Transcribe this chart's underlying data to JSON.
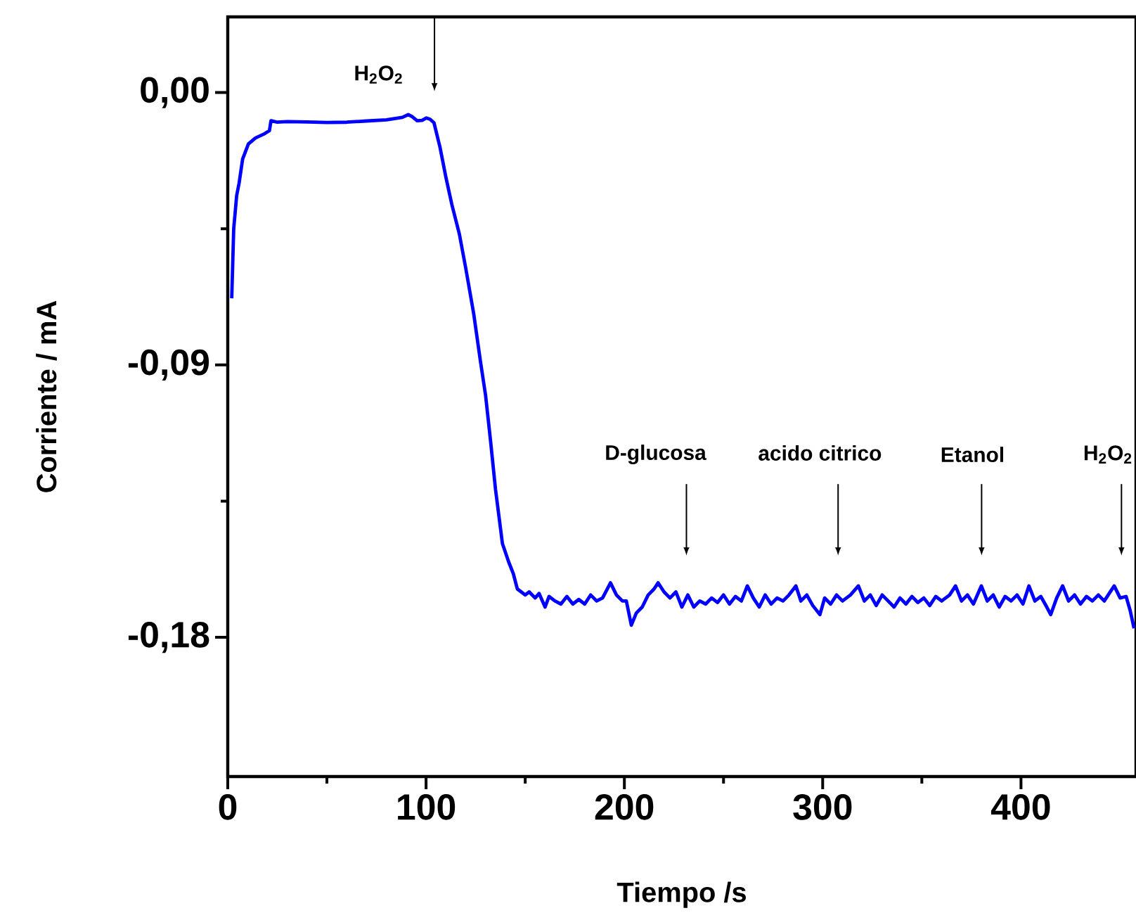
{
  "chart_data": {
    "type": "line",
    "xlabel": "Tiempo /s",
    "ylabel": "Corriente / mA",
    "xlim": [
      0,
      458
    ],
    "ylim": [
      -0.226,
      0.025
    ],
    "xticks": [
      0,
      100,
      200,
      300,
      400
    ],
    "yticks": [
      {
        "value": 0,
        "label": "0,00"
      },
      {
        "value": -0.09,
        "label": "-0,09"
      },
      {
        "value": -0.18,
        "label": "-0,18"
      }
    ],
    "grid": false,
    "marker": "none",
    "line_style": "solid",
    "annotations": [
      "H$_{2}$O$_{2}$",
      "D-glucosa",
      "acido citrico",
      "Etanol",
      "H$_{2}$O$_{2}$"
    ],
    "series": [
      {
        "color": "#0000ff",
        "x": [
          2,
          3,
          4.5,
          5.7,
          7.5,
          10.4,
          14,
          18,
          21,
          21.8,
          25,
          30,
          40,
          50,
          60,
          70,
          80,
          88,
          91,
          93,
          95.5,
          98,
          100.2,
          102,
          104,
          107,
          110,
          113,
          116.8,
          120,
          124,
          127.4,
          130,
          132.5,
          135,
          138.5,
          141.6,
          144,
          146,
          148,
          150,
          152,
          155,
          157,
          160,
          162,
          165,
          168,
          171,
          174,
          177,
          180,
          183,
          186,
          189,
          193,
          196,
          199,
          201,
          203.5,
          206,
          209,
          212,
          215,
          217,
          220,
          223,
          226,
          229,
          232,
          235,
          238,
          241,
          244,
          247,
          250,
          253,
          256,
          259,
          262,
          265,
          268,
          271,
          274,
          277,
          280,
          283,
          286.5,
          289,
          292,
          295,
          298.6,
          301,
          304,
          307,
          310,
          314,
          318,
          321,
          324,
          327,
          330,
          333,
          336,
          339,
          342,
          345,
          348,
          351,
          354,
          357,
          360,
          364,
          367,
          370,
          373,
          376,
          380,
          383,
          386,
          389,
          392,
          395,
          398,
          401,
          404,
          407,
          410,
          413,
          415,
          418,
          421,
          424,
          427,
          430,
          433,
          436,
          439,
          442,
          447,
          450,
          453,
          455,
          457
        ],
        "values": [
          -0.068,
          -0.045,
          -0.034,
          -0.03,
          -0.022,
          -0.017,
          -0.015,
          -0.0138,
          -0.0126,
          -0.0093,
          -0.0098,
          -0.0096,
          -0.0097,
          -0.0099,
          -0.0098,
          -0.0094,
          -0.009,
          -0.0082,
          -0.0073,
          -0.008,
          -0.0093,
          -0.0092,
          -0.0084,
          -0.0088,
          -0.01,
          -0.018,
          -0.028,
          -0.037,
          -0.0468,
          -0.058,
          -0.073,
          -0.0887,
          -0.1,
          -0.115,
          -0.131,
          -0.149,
          -0.155,
          -0.159,
          -0.164,
          -0.165,
          -0.166,
          -0.165,
          -0.167,
          -0.1655,
          -0.17,
          -0.1665,
          -0.168,
          -0.169,
          -0.1665,
          -0.169,
          -0.1675,
          -0.169,
          -0.166,
          -0.168,
          -0.167,
          -0.162,
          -0.166,
          -0.168,
          -0.168,
          -0.176,
          -0.172,
          -0.17,
          -0.166,
          -0.164,
          -0.162,
          -0.165,
          -0.167,
          -0.165,
          -0.17,
          -0.166,
          -0.17,
          -0.168,
          -0.169,
          -0.167,
          -0.1685,
          -0.166,
          -0.169,
          -0.1665,
          -0.168,
          -0.163,
          -0.167,
          -0.17,
          -0.166,
          -0.169,
          -0.167,
          -0.168,
          -0.166,
          -0.163,
          -0.168,
          -0.166,
          -0.1695,
          -0.1725,
          -0.167,
          -0.169,
          -0.166,
          -0.168,
          -0.166,
          -0.163,
          -0.168,
          -0.166,
          -0.1695,
          -0.166,
          -0.168,
          -0.17,
          -0.167,
          -0.169,
          -0.1665,
          -0.1685,
          -0.167,
          -0.1695,
          -0.1665,
          -0.168,
          -0.166,
          -0.163,
          -0.168,
          -0.166,
          -0.169,
          -0.163,
          -0.168,
          -0.166,
          -0.17,
          -0.1665,
          -0.168,
          -0.166,
          -0.169,
          -0.163,
          -0.168,
          -0.1665,
          -0.17,
          -0.1725,
          -0.167,
          -0.163,
          -0.168,
          -0.166,
          -0.169,
          -0.1665,
          -0.168,
          -0.166,
          -0.168,
          -0.163,
          -0.167,
          -0.1665,
          -0.171,
          -0.177
        ]
      }
    ]
  }
}
